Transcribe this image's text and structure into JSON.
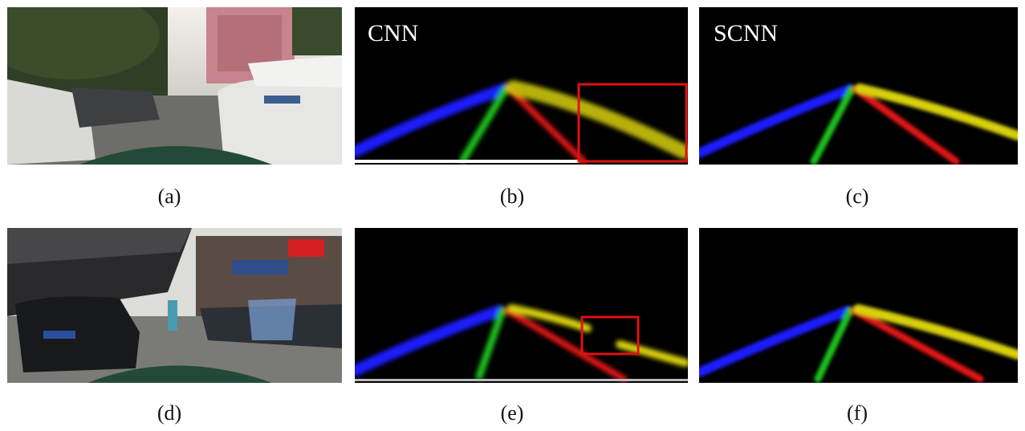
{
  "figure": {
    "panels": [
      {
        "id": "a",
        "kind": "photo",
        "caption": "(a)",
        "title": ""
      },
      {
        "id": "b",
        "kind": "lane-map",
        "caption": "(b)",
        "title": "CNN",
        "highlight": true
      },
      {
        "id": "c",
        "kind": "lane-map",
        "caption": "(c)",
        "title": "SCNN",
        "highlight": false
      },
      {
        "id": "d",
        "kind": "photo",
        "caption": "(d)",
        "title": ""
      },
      {
        "id": "e",
        "kind": "lane-map",
        "caption": "(e)",
        "title": "",
        "highlight": true
      },
      {
        "id": "f",
        "kind": "lane-map",
        "caption": "(f)",
        "title": "",
        "highlight": false
      }
    ],
    "lane_colors": {
      "lane_1": "#1a1aff",
      "lane_2": "#1fbf1f",
      "lane_3": "#e01515",
      "lane_4": "#d8d010"
    },
    "highlight_color": "#e01010"
  }
}
